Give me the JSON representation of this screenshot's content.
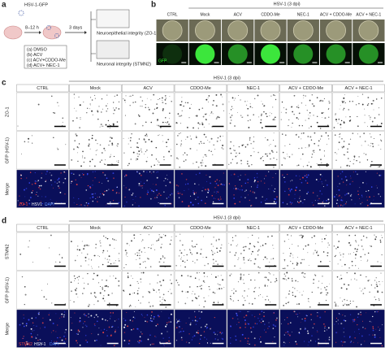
{
  "panel_a": {
    "label": "a",
    "virus": "HSV-1-GFP",
    "incubation": "8–12 h",
    "duration": "3 days",
    "conditions": [
      "(a) DMSO",
      "(b) ACV",
      "(c) ACV+CDDO-Me",
      "(d) ACV+ NEC-1"
    ],
    "readouts": [
      "Neuroepithelial integrity (ZO-1)",
      "Neuronal integrity (STMN2)"
    ]
  },
  "panel_b": {
    "label": "b",
    "header": "HSV-1 (3 dpi)",
    "columns": [
      "CTRL",
      "Mock",
      "ACV",
      "CDDO-Me",
      "NEC-1",
      "ACV + CDDO-Me",
      "ACV + NEC-1"
    ],
    "row_label": "GFP"
  },
  "panel_c": {
    "label": "c",
    "header": "HSV-1 (3 dpi)",
    "columns": [
      "CTRL",
      "Mock",
      "ACV",
      "CDDO-Me",
      "NEC-1",
      "ACV + CDDO-Me",
      "ACV + NEC-1"
    ],
    "rows": [
      "ZO-1",
      "GFP (HSV-1)",
      "Merge"
    ],
    "legend": [
      "ZO-1",
      "HSV1",
      "DAPI"
    ]
  },
  "panel_d": {
    "label": "d",
    "header": "HSV-1 (3 dpi)",
    "columns": [
      "CTRL",
      "Mock",
      "ACV",
      "CDDO-Me",
      "NEC-1",
      "ACV + CDDO-Me",
      "ACV + NEC-1"
    ],
    "rows": [
      "STMN2",
      "GFP (HSV-1)",
      "Merge"
    ],
    "legend": [
      "STMN2",
      "HSV-1",
      "DAPI"
    ]
  }
}
